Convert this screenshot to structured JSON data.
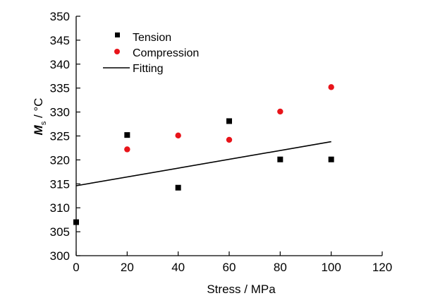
{
  "chart_data": {
    "type": "scatter",
    "xlabel": "Stress / MPa",
    "ylabel": {
      "main": "M",
      "subscript": "s",
      "unit": " / °C"
    },
    "xlim": [
      0,
      120
    ],
    "ylim": [
      300,
      350
    ],
    "xticks": [
      0,
      20,
      40,
      60,
      80,
      100,
      120
    ],
    "yticks": [
      300,
      305,
      310,
      315,
      320,
      325,
      330,
      335,
      340,
      345,
      350
    ],
    "grid": false,
    "legend_position": "top-left",
    "series": [
      {
        "name": "Tension",
        "kind": "points",
        "marker": "square",
        "color": "#000000",
        "x": [
          0,
          20,
          40,
          60,
          80,
          100
        ],
        "y": [
          307,
          325.2,
          314.2,
          328.1,
          320.1,
          320.1
        ]
      },
      {
        "name": "Compression",
        "kind": "points",
        "marker": "circle",
        "color": "#e8141a",
        "x": [
          20,
          40,
          60,
          80,
          100
        ],
        "y": [
          322.2,
          325.1,
          324.2,
          330.1,
          335.2
        ]
      },
      {
        "name": "Fitting",
        "kind": "line",
        "color": "#000000",
        "x": [
          0,
          100
        ],
        "y": [
          314.6,
          323.8
        ]
      }
    ]
  }
}
